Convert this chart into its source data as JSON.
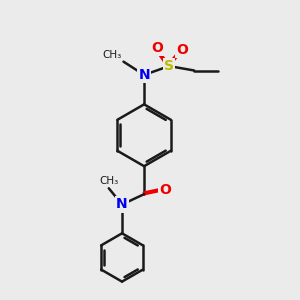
{
  "background_color": "#ebebeb",
  "bond_color": "#1a1a1a",
  "bond_width": 1.8,
  "atom_colors": {
    "N": "#0000ee",
    "O": "#ee0000",
    "S": "#bbbb00",
    "C": "#1a1a1a"
  },
  "figsize": [
    3.0,
    3.0
  ],
  "dpi": 100
}
